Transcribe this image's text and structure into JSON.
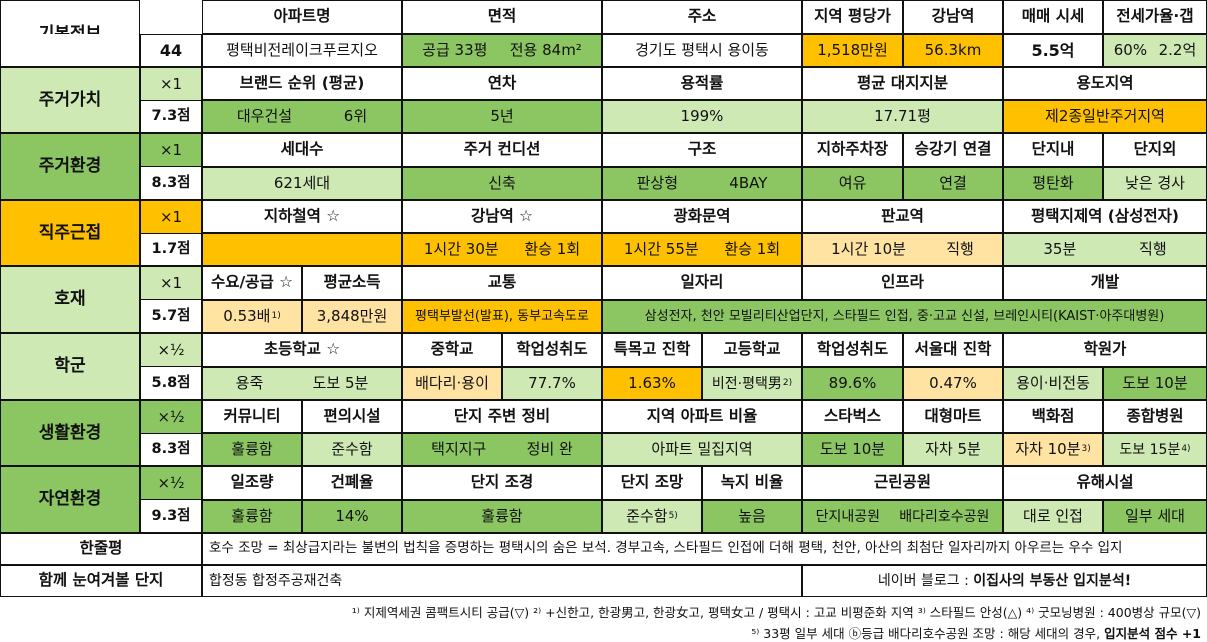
{
  "basic": {
    "title": "기본정보",
    "number": "44",
    "headers": [
      "아파트명",
      "면적",
      "주소",
      "지역 평당가",
      "강남역",
      "매매 시세",
      "전세가율·갭"
    ],
    "apt_name": "평택비전레이크푸르지오",
    "area_supply": "공급 33평",
    "area_exclusive": "전용 84m²",
    "address": "경기도 평택시 용이동",
    "price_per_pyeong": "1,518만원",
    "gangnam_dist": "56.3km",
    "sale_price": "5.5억",
    "jeonse_rate": "60%",
    "gap": "2.2억"
  },
  "sections": [
    {
      "name": "주거가치",
      "mult": "×1",
      "score": "7.3점"
    },
    {
      "name": "주거환경",
      "mult": "×1",
      "score": "8.3점"
    },
    {
      "name": "직주근접",
      "mult": "×1",
      "score": "1.7점"
    },
    {
      "name": "호재",
      "mult": "×1",
      "score": "5.7점"
    },
    {
      "name": "학군",
      "mult": "×½",
      "score": "5.8점"
    },
    {
      "name": "생활환경",
      "mult": "×½",
      "score": "8.3점"
    },
    {
      "name": "자연환경",
      "mult": "×½",
      "score": "9.3점"
    }
  ],
  "value": {
    "h_brand": "브랜드 순위 (평균)",
    "h_age": "연차",
    "h_far": "용적률",
    "h_land": "평균 대지지분",
    "h_zone": "용도지역",
    "brand": "대우건설",
    "brand_rank": "6위",
    "age": "5년",
    "far": "199%",
    "land": "17.71평",
    "zone": "제2종일반주거지역"
  },
  "env": {
    "h_households": "세대수",
    "h_condition": "주거 컨디션",
    "h_structure": "구조",
    "h_parking": "지하주차장",
    "h_elevator": "승강기 연결",
    "h_inside": "단지내",
    "h_outside": "단지외",
    "households": "621세대",
    "condition": "신축",
    "structure_type": "판상형",
    "bay": "4BAY",
    "parking": "여유",
    "elevator": "연결",
    "inside": "평탄화",
    "outside": "낮은 경사"
  },
  "commute": {
    "h_subway": "지하철역 ☆",
    "h_gangnam": "강남역 ☆",
    "h_gwanghwamun": "광화문역",
    "h_pangyo": "판교역",
    "h_jije": "평택지제역 (삼성전자)",
    "gangnam_time": "1시간 30분",
    "gangnam_transfer": "환승 1회",
    "gwang_time": "1시간 55분",
    "gwang_transfer": "환승 1회",
    "pangyo_time": "1시간 10분",
    "pangyo_transfer": "직행",
    "jije_time": "35분",
    "jije_transfer": "직행"
  },
  "dev": {
    "h_supply": "수요/공급 ☆",
    "h_income": "평균소득",
    "h_traffic": "교통",
    "h_jobs": "일자리",
    "h_infra": "인프라",
    "h_develop": "개발",
    "supply": "0.53배",
    "supply_note": "1)",
    "income": "3,848만원",
    "traffic": "평택부발선(발표), 동부고속도로",
    "jobs_infra_develop": "삼성전자, 천안 모빌리티산업단지, 스타필드 인접, 중·고교 신설, 브레인시티(KAIST·아주대병원)"
  },
  "school": {
    "h_elem": "초등학교 ☆",
    "h_middle": "중학교",
    "h_mid_score": "학업성취도",
    "h_special": "특목고 진학",
    "h_high": "고등학교",
    "h_high_score": "학업성취도",
    "h_snu": "서울대 진학",
    "h_academy": "학원가",
    "elem": "용죽",
    "elem_walk": "도보 5분",
    "middle": "배다리·용이",
    "mid_score": "77.7%",
    "special": "1.63%",
    "high": "비전·평택男",
    "high_note": "2)",
    "high_score": "89.6%",
    "snu": "0.47%",
    "academy": "용이·비전동",
    "academy_walk": "도보 10분"
  },
  "life": {
    "h_community": "커뮤니티",
    "h_conv": "편의시설",
    "h_maint": "단지 주변 정비",
    "h_apt_ratio": "지역 아파트 비율",
    "h_starbucks": "스타벅스",
    "h_mart": "대형마트",
    "h_dept": "백화점",
    "h_hospital": "종합병원",
    "community": "훌륭함",
    "conv": "준수함",
    "maint1": "택지지구",
    "maint2": "정비 완",
    "apt_ratio": "아파트 밀집지역",
    "starbucks": "도보 10분",
    "mart": "자차 5분",
    "dept": "자차 10분",
    "dept_note": "3)",
    "hospital": "도보 15분",
    "hospital_note": "4)"
  },
  "nature": {
    "h_sun": "일조량",
    "h_bcr": "건폐율",
    "h_view": "단지 조경",
    "h_outlook": "단지 조망",
    "h_green": "녹지 비율",
    "h_park": "근린공원",
    "h_harm": "유해시설",
    "sun": "훌륭함",
    "bcr": "14%",
    "view": "훌륭함",
    "outlook": "준수함",
    "outlook_note": "5)",
    "green": "높음",
    "park1": "단지내공원",
    "park2": "배다리호수공원",
    "harm1": "대로 인접",
    "harm2": "일부 세대"
  },
  "summary": {
    "label": "한줄평",
    "text": "호수 조망 = 최상급지라는 불변의 법칙을 증명하는 평택시의 숨은 보석. 경부고속, 스타필드 인접에 더해 평택, 천안, 아산의 최첨단 일자리까지 아우르는 우수 입지",
    "label2": "함께 눈여겨볼 단지",
    "together": "합정동 합정주공재건축",
    "blog_prefix": "네이버 블로그 : ",
    "blog_name": "이집사의 부동산 입지분석!"
  },
  "footnotes": {
    "line1": "¹⁾ 지제역세권 콤팩트시티 공급(▽) ²⁾ +신한고, 한광男고, 한광女고, 평택女고 / 평택시 : 고교 비평준화 지역 ³⁾ 스타필드 안성(△) ⁴⁾ 굿모닝병원 : 400병상 규모(▽)",
    "line2_a": "⁵⁾ 33평 일부 세대 ⓑ등급 배다리호수공원 조망 : 해당 세대의 경우, ",
    "line2_b": "입지분석 점수 +1"
  }
}
